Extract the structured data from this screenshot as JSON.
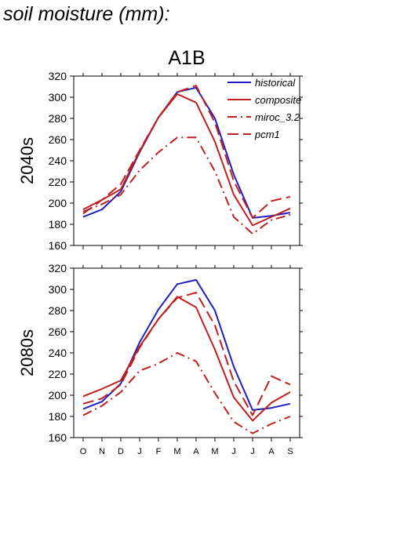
{
  "title": "soil moisture (mm):",
  "colors": {
    "historical": "#1f1fbf",
    "scenario": "#bf1f1f"
  },
  "chart_data": {
    "type": "line",
    "title": "A1B",
    "x": [
      "O",
      "N",
      "D",
      "J",
      "F",
      "M",
      "A",
      "M",
      "J",
      "J",
      "A",
      "S"
    ],
    "ylim": [
      160,
      320
    ],
    "yticks": [
      160,
      180,
      200,
      220,
      240,
      260,
      280,
      300,
      320
    ],
    "grid": false,
    "legend_position": "top-right",
    "legend": [
      {
        "name": "historical",
        "color": "#1f1fbf",
        "dash": "solid"
      },
      {
        "name": "composite",
        "color": "#bf1f1f",
        "dash": "solid"
      },
      {
        "name": "miroc_3.2",
        "color": "#bf1f1f",
        "dash": "dashdot"
      },
      {
        "name": "pcm1",
        "color": "#bf1f1f",
        "dash": "dashed"
      }
    ],
    "panels": [
      {
        "ylabel": "2040s",
        "series": [
          {
            "name": "historical",
            "values": [
              187,
              194,
              211,
              248,
              281,
              305,
              309,
              280,
              227,
              186,
              188,
              191
            ]
          },
          {
            "name": "composite",
            "values": [
              194,
              203,
              213,
              249,
              281,
              303,
              295,
              258,
              208,
              179,
              187,
              195
            ]
          },
          {
            "name": "miroc_3.2",
            "values": [
              192,
              199,
              208,
              231,
              248,
              262,
              262,
              230,
              187,
              171,
              184,
              189
            ]
          },
          {
            "name": "pcm1",
            "values": [
              190,
              203,
              218,
              250,
              281,
              305,
              311,
              276,
              221,
              186,
              202,
              206
            ]
          }
        ]
      },
      {
        "ylabel": "2080s",
        "series": [
          {
            "name": "historical",
            "values": [
              187,
              194,
              211,
              250,
              281,
              305,
              309,
              280,
              227,
              186,
              188,
              192
            ]
          },
          {
            "name": "composite",
            "values": [
              199,
              206,
              214,
              246,
              272,
              293,
              283,
              243,
              198,
              176,
              193,
              203
            ]
          },
          {
            "name": "miroc_3.2",
            "values": [
              181,
              190,
              203,
              223,
              230,
              240,
              232,
              202,
              175,
              164,
              173,
              180
            ]
          },
          {
            "name": "pcm1",
            "values": [
              192,
              197,
              210,
              245,
              272,
              292,
              297,
              266,
              213,
              181,
              218,
              210
            ]
          }
        ]
      }
    ]
  }
}
